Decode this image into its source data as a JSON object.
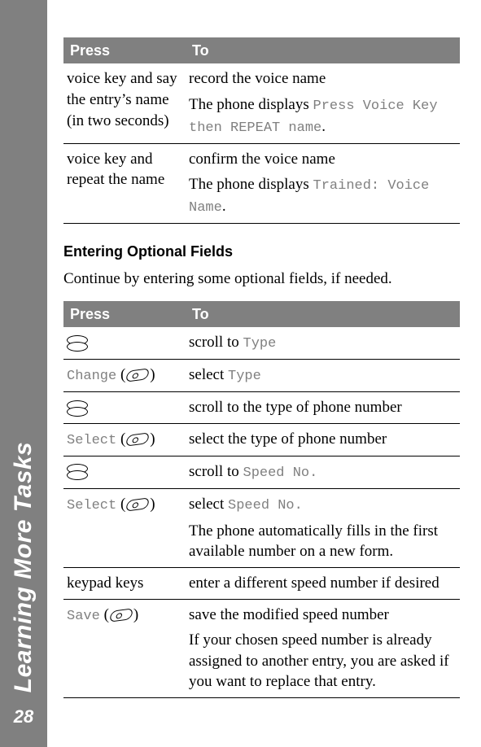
{
  "sidebar": {
    "title": "Learning More Tasks",
    "page_number": "28",
    "bg_color": "#808080",
    "text_color": "#ffffff"
  },
  "colors": {
    "header_bg": "#808080",
    "header_text": "#ffffff",
    "courier_text": "#808080",
    "body_text": "#000000"
  },
  "table1": {
    "headers": {
      "press": "Press",
      "to": "To"
    },
    "rows": [
      {
        "press": "voice key and say the entry’s name (in two seconds)",
        "to_line1": "record the voice name",
        "to_line2_prefix": "The phone displays ",
        "to_line2_code": "Press Voice Key then REPEAT name",
        "to_line2_suffix": "."
      },
      {
        "press": "voice key and repeat the name",
        "to_line1": "confirm the voice name",
        "to_line2_prefix": "The phone displays ",
        "to_line2_code": "Trained: Voice Name",
        "to_line2_suffix": "."
      }
    ]
  },
  "section_heading": "Entering Optional Fields",
  "section_paragraph": "Continue by entering some optional fields, if needed.",
  "table2": {
    "headers": {
      "press": "Press",
      "to": "To"
    },
    "rows": [
      {
        "kind": "scroll",
        "to_prefix": "scroll to ",
        "to_code": "Type"
      },
      {
        "kind": "softkey",
        "label": "Change",
        "to_prefix": "select ",
        "to_code": "Type"
      },
      {
        "kind": "scroll",
        "to_plain": "scroll to the type of phone number"
      },
      {
        "kind": "softkey",
        "label": "Select",
        "to_plain": "select the type of phone number"
      },
      {
        "kind": "scroll",
        "to_prefix": "scroll to ",
        "to_code": "Speed No."
      },
      {
        "kind": "softkey",
        "label": "Select",
        "to_prefix": "select ",
        "to_code": "Speed No.",
        "extra_para": "The phone automatically fills in the first available number on a new form."
      },
      {
        "kind": "text",
        "press_text": "keypad keys",
        "to_plain": "enter a different speed number if desired"
      },
      {
        "kind": "softkey",
        "label": "Save",
        "to_plain": "save the modified speed number",
        "extra_para": "If your chosen speed number is already assigned to another entry, you are asked if you want to replace that entry."
      }
    ],
    "paren_open": "(",
    "paren_close": ")"
  },
  "icons": {
    "scroll": "scroll-key-icon",
    "softkey": "soft-key-icon"
  }
}
